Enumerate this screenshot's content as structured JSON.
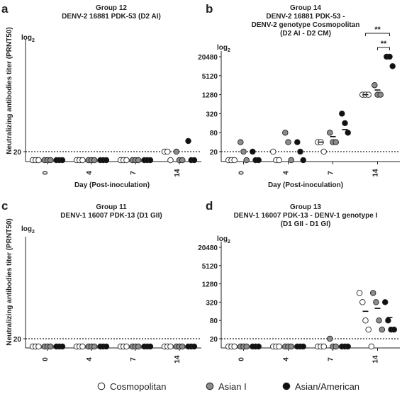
{
  "figure": {
    "y_axis_label": "Neutralizing antibodies titer (PRNT50)",
    "x_axis_label": "Day (Post-inoculation)",
    "log_label": "log2",
    "legend": [
      {
        "name": "Cosmopolitan",
        "color": "#ffffff"
      },
      {
        "name": "Asian I",
        "color": "#8c8c8c"
      },
      {
        "name": "Asian/American",
        "color": "#111111"
      }
    ]
  },
  "chart_data": [
    {
      "type": "scatter",
      "panel": "a",
      "title_lines": [
        "Group 12",
        "DENV-2 16881 PDK-53 (D2 AI)"
      ],
      "categories": [
        "0",
        "4",
        "7",
        "14"
      ],
      "y_ticks": [
        20,
        80,
        320,
        1280,
        5120,
        20480
      ],
      "y_scale": "log2",
      "reference_line": 20,
      "show_y_ticks": false,
      "significance": [],
      "series": [
        {
          "name": "Cosmopolitan",
          "values": [
            [
              5,
              5,
              5
            ],
            [
              5,
              5,
              5
            ],
            [
              5,
              5,
              5
            ],
            [
              20,
              20,
              5
            ]
          ],
          "means": [
            null,
            null,
            null,
            null
          ]
        },
        {
          "name": "Asian I",
          "values": [
            [
              5,
              5,
              5
            ],
            [
              5,
              5,
              5
            ],
            [
              5,
              5,
              5
            ],
            [
              20,
              5,
              5
            ]
          ],
          "means": [
            null,
            null,
            null,
            null
          ]
        },
        {
          "name": "Asian/American",
          "values": [
            [
              5,
              5,
              5
            ],
            [
              5,
              5,
              5
            ],
            [
              5,
              5,
              5
            ],
            [
              40,
              5,
              5
            ]
          ],
          "means": [
            null,
            null,
            null,
            null
          ]
        }
      ]
    },
    {
      "type": "scatter",
      "panel": "b",
      "title_lines": [
        "Group 14",
        "DENV-2 16881 PDK-53 -",
        "DENV-2 genotype Cosmopolitan",
        "(D2 AI - D2 CM)"
      ],
      "categories": [
        "0",
        "4",
        "7",
        "14"
      ],
      "y_ticks": [
        20,
        80,
        320,
        1280,
        5120,
        20480
      ],
      "y_scale": "log2",
      "reference_line": 20,
      "show_y_ticks": true,
      "significance": [
        {
          "label": "**",
          "from": 0,
          "to": 2
        },
        {
          "label": "**",
          "from": 1,
          "to": 2
        }
      ],
      "series": [
        {
          "name": "Cosmopolitan",
          "values": [
            [
              5,
              5,
              5
            ],
            [
              20,
              5,
              5
            ],
            [
              40,
              40,
              20
            ],
            [
              1280,
              1280,
              1280
            ]
          ],
          "means": [
            null,
            null,
            40,
            1280
          ]
        },
        {
          "name": "Asian I",
          "values": [
            [
              40,
              20,
              5
            ],
            [
              80,
              40,
              5
            ],
            [
              80,
              40,
              40
            ],
            [
              2560,
              1280,
              1280
            ]
          ],
          "means": [
            null,
            null,
            60,
            1800
          ]
        },
        {
          "name": "Asian/American",
          "values": [
            [
              20,
              5,
              5
            ],
            [
              40,
              20,
              5
            ],
            [
              320,
              160,
              80
            ],
            [
              20480,
              20480,
              10240
            ]
          ],
          "means": [
            null,
            null,
            100,
            20480
          ]
        }
      ]
    },
    {
      "type": "scatter",
      "panel": "c",
      "title_lines": [
        "Group 11",
        "DENV-1 16007 PDK-13 (D1 GII)"
      ],
      "categories": [
        "0",
        "4",
        "7",
        "14"
      ],
      "y_ticks": [
        20,
        80,
        320,
        1280,
        5120,
        20480
      ],
      "y_scale": "log2",
      "reference_line": 20,
      "show_y_ticks": false,
      "significance": [],
      "series": [
        {
          "name": "Cosmopolitan",
          "values": [
            [
              5,
              5,
              5
            ],
            [
              5,
              5,
              5
            ],
            [
              5,
              5,
              5
            ],
            [
              5,
              5,
              5
            ]
          ],
          "means": [
            null,
            null,
            null,
            null
          ]
        },
        {
          "name": "Asian I",
          "values": [
            [
              5,
              5,
              5
            ],
            [
              5,
              5,
              5
            ],
            [
              5,
              5,
              5
            ],
            [
              5,
              5,
              5
            ]
          ],
          "means": [
            null,
            null,
            null,
            null
          ]
        },
        {
          "name": "Asian/American",
          "values": [
            [
              5,
              5,
              5
            ],
            [
              5,
              5,
              5
            ],
            [
              5,
              5,
              5
            ],
            [
              5,
              5,
              5
            ]
          ],
          "means": [
            null,
            null,
            null,
            null
          ]
        }
      ]
    },
    {
      "type": "scatter",
      "panel": "d",
      "title_lines": [
        "Group 13",
        "DENV-1 16007 PDK-13 - DENV-1 genotype I",
        "(D1 GII - D1 GI)"
      ],
      "categories": [
        "0",
        "4",
        "7",
        "14"
      ],
      "y_ticks": [
        20,
        80,
        320,
        1280,
        5120,
        20480
      ],
      "y_scale": "log2",
      "reference_line": 20,
      "show_y_ticks": true,
      "significance": [],
      "series": [
        {
          "name": "Cosmopolitan",
          "values": [
            [
              5,
              5,
              5
            ],
            [
              5,
              5,
              5
            ],
            [
              5,
              5,
              5
            ],
            [
              640,
              320,
              80,
              40,
              10
            ]
          ],
          "means": [
            null,
            null,
            null,
            160
          ]
        },
        {
          "name": "Asian I",
          "values": [
            [
              5,
              5,
              5
            ],
            [
              5,
              5,
              5
            ],
            [
              20,
              10,
              5
            ],
            [
              640,
              320,
              80,
              40
            ]
          ],
          "means": [
            null,
            null,
            null,
            200
          ]
        },
        {
          "name": "Asian/American",
          "values": [
            [
              5,
              5,
              5
            ],
            [
              5,
              5,
              5
            ],
            [
              5,
              5,
              5
            ],
            [
              320,
              80,
              40,
              40
            ]
          ],
          "means": [
            null,
            null,
            null,
            100
          ]
        }
      ]
    }
  ]
}
